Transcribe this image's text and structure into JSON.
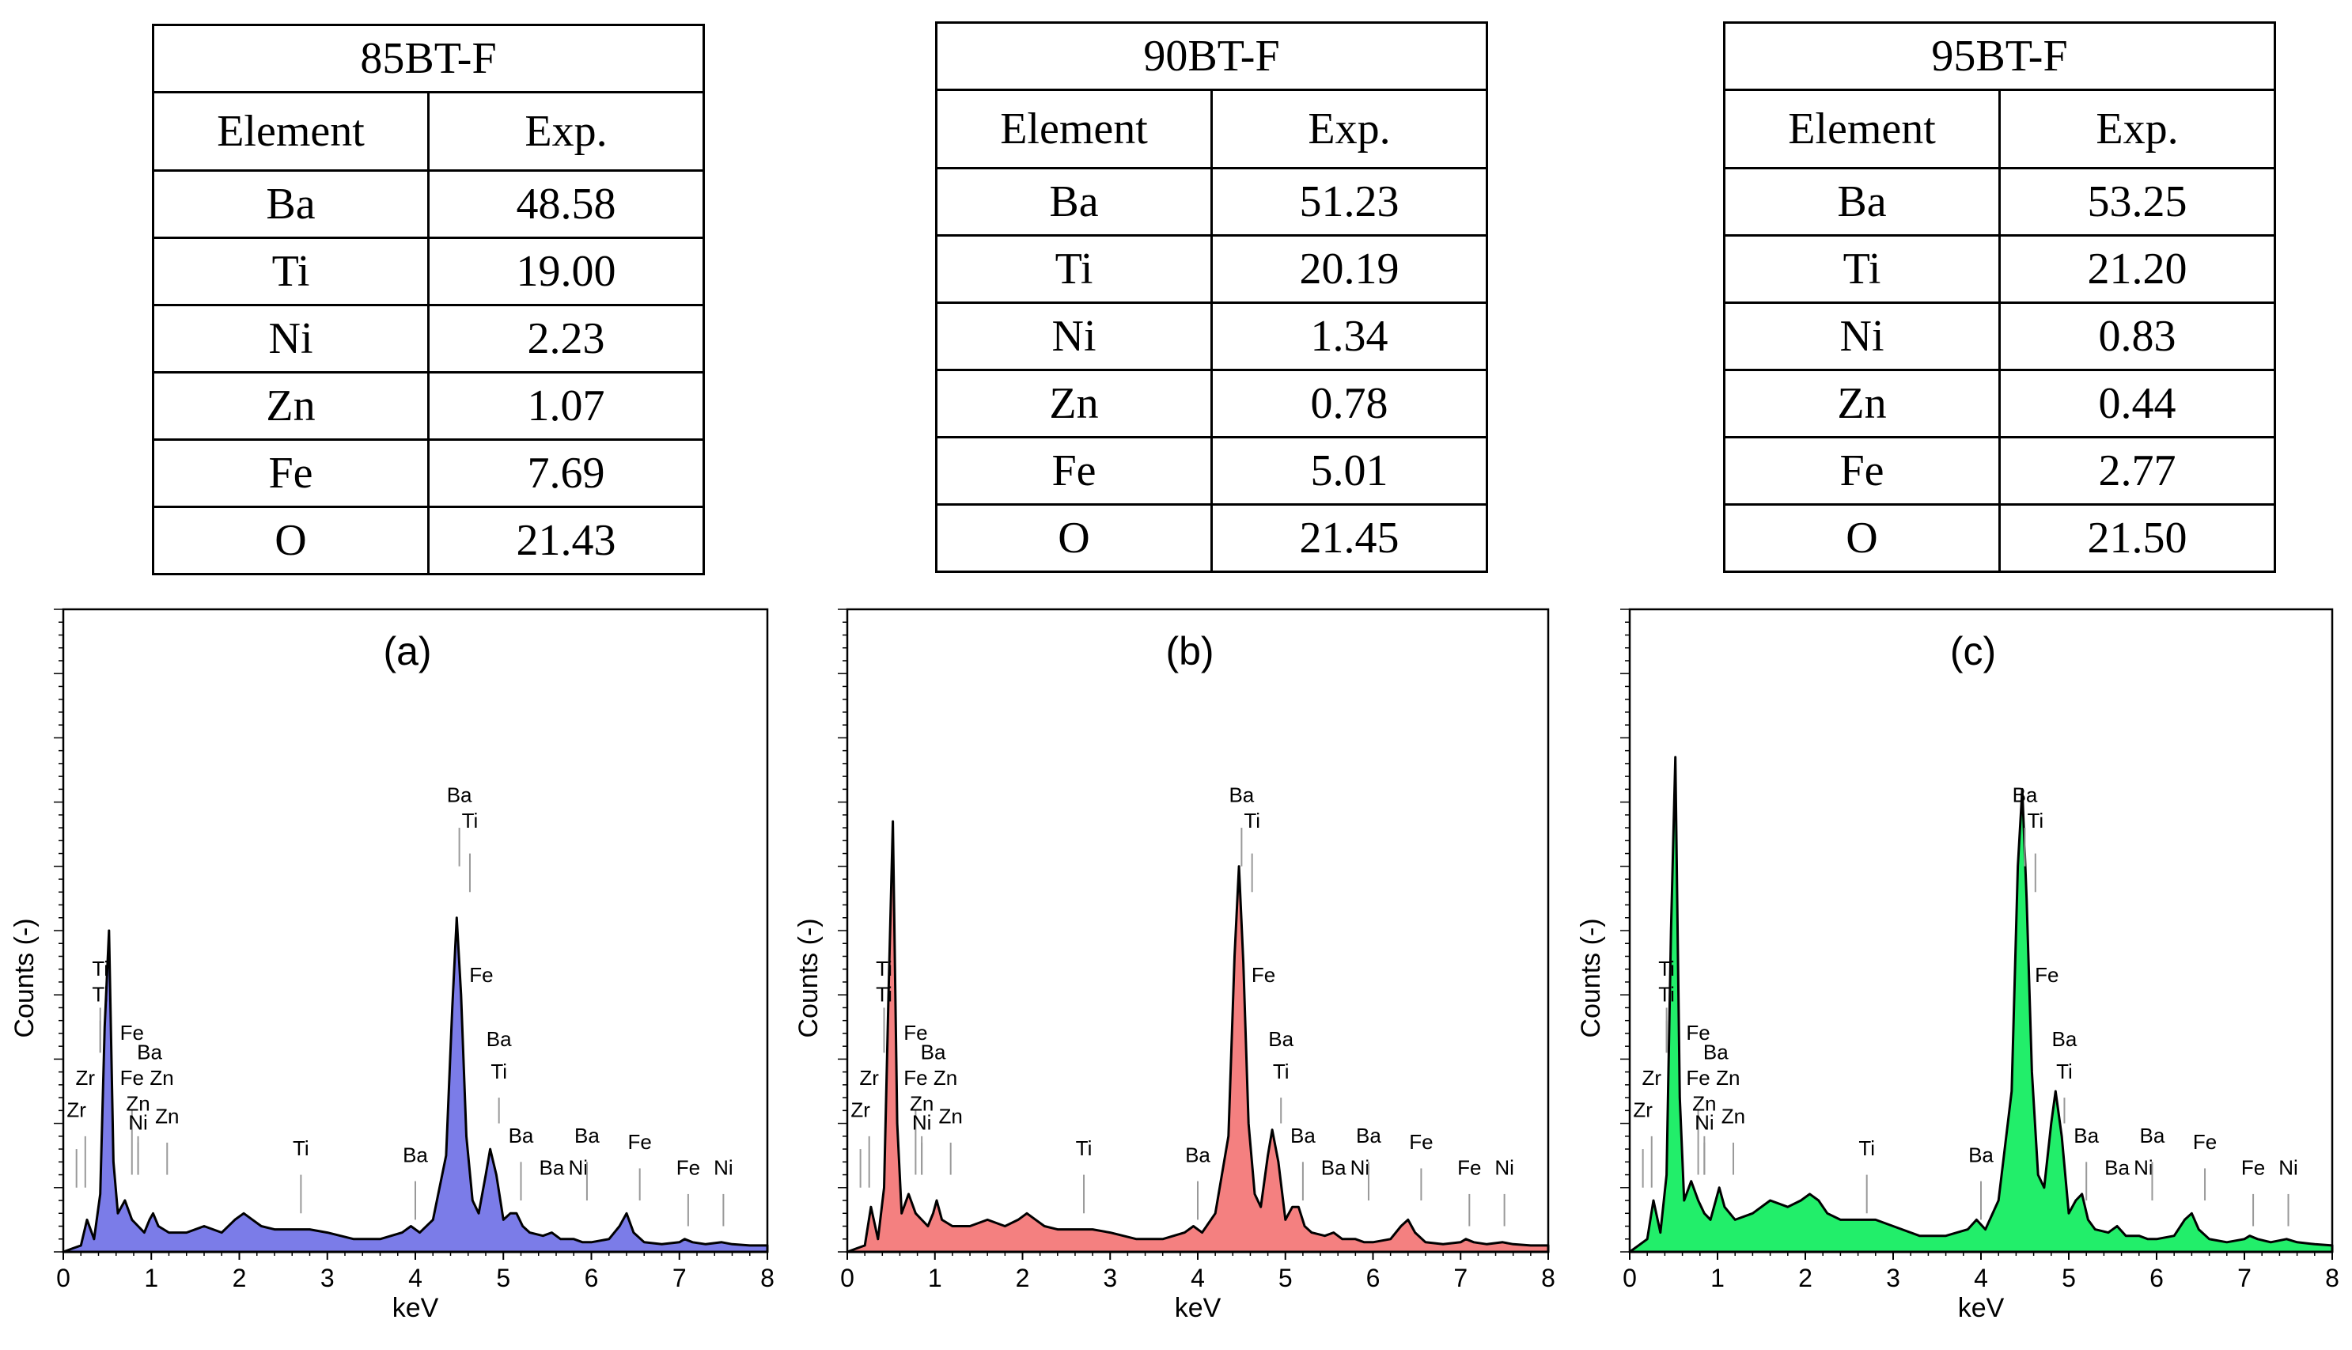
{
  "tables": [
    {
      "title": "85BT-F",
      "header": [
        "Element",
        "Exp."
      ],
      "rows": [
        [
          "Ba",
          "48.58"
        ],
        [
          "Ti",
          "19.00"
        ],
        [
          "Ni",
          "2.23"
        ],
        [
          "Zn",
          "1.07"
        ],
        [
          "Fe",
          "7.69"
        ],
        [
          "O",
          "21.43"
        ]
      ]
    },
    {
      "title": "90BT-F",
      "header": [
        "Element",
        "Exp."
      ],
      "rows": [
        [
          "Ba",
          "51.23"
        ],
        [
          "Ti",
          "20.19"
        ],
        [
          "Ni",
          "1.34"
        ],
        [
          "Zn",
          "0.78"
        ],
        [
          "Fe",
          "5.01"
        ],
        [
          "O",
          "21.45"
        ]
      ]
    },
    {
      "title": "95BT-F",
      "header": [
        "Element",
        "Exp."
      ],
      "rows": [
        [
          "Ba",
          "53.25"
        ],
        [
          "Ti",
          "21.20"
        ],
        [
          "Ni",
          "0.83"
        ],
        [
          "Zn",
          "0.44"
        ],
        [
          "Fe",
          "2.77"
        ],
        [
          "O",
          "21.50"
        ]
      ]
    }
  ],
  "chart_data": [
    {
      "type": "area",
      "title": "(a)",
      "xlabel": "keV",
      "ylabel": "Counts (-)",
      "xlim": [
        0,
        8
      ],
      "ylim": [
        0,
        100
      ],
      "xticks": [
        0,
        1,
        2,
        3,
        4,
        5,
        6,
        7,
        8
      ],
      "fill": "#7b7ce8",
      "x": [
        0.0,
        0.1,
        0.2,
        0.27,
        0.35,
        0.42,
        0.47,
        0.52,
        0.57,
        0.62,
        0.7,
        0.78,
        0.85,
        0.92,
        0.98,
        1.02,
        1.08,
        1.2,
        1.4,
        1.6,
        1.8,
        1.95,
        2.05,
        2.15,
        2.25,
        2.4,
        2.6,
        2.8,
        3.0,
        3.3,
        3.6,
        3.85,
        3.95,
        4.05,
        4.2,
        4.35,
        4.42,
        4.47,
        4.52,
        4.58,
        4.65,
        4.72,
        4.8,
        4.85,
        4.92,
        5.0,
        5.08,
        5.15,
        5.22,
        5.3,
        5.45,
        5.55,
        5.65,
        5.8,
        5.9,
        6.0,
        6.2,
        6.32,
        6.4,
        6.48,
        6.6,
        6.8,
        7.0,
        7.06,
        7.15,
        7.3,
        7.48,
        7.6,
        7.8,
        8.0
      ],
      "y": [
        0,
        0.5,
        1,
        5,
        2,
        9,
        35,
        50,
        14,
        6,
        8,
        5,
        4,
        3,
        5,
        6,
        4,
        3,
        3,
        4,
        3,
        5,
        6,
        5,
        4,
        3.5,
        3.5,
        3.5,
        3,
        2,
        2,
        3,
        4,
        3,
        5,
        15,
        38,
        52,
        40,
        18,
        8,
        6,
        12,
        16,
        12,
        5,
        6,
        6,
        4,
        3,
        2.5,
        3,
        2,
        2,
        1.5,
        1.5,
        2,
        4,
        6,
        3,
        1.5,
        1.2,
        1.5,
        2,
        1.5,
        1.2,
        1.5,
        1.2,
        1,
        1
      ],
      "annotations": [
        "Zr",
        "Zr",
        "Ti",
        "Ti",
        "Fe",
        "Ba",
        "Fe",
        "Zn",
        "Zn",
        "Ni",
        "Zn",
        "Ti",
        "Ba",
        "Ba",
        "Ti",
        "Fe",
        "Ba",
        "Ti",
        "Ba",
        "Ba",
        "Ni",
        "Ba",
        "Fe",
        "Fe",
        "Ni"
      ]
    },
    {
      "type": "area",
      "title": "(b)",
      "xlabel": "keV",
      "ylabel": "Counts (-)",
      "xlim": [
        0,
        8
      ],
      "ylim": [
        0,
        100
      ],
      "xticks": [
        0,
        1,
        2,
        3,
        4,
        5,
        6,
        7,
        8
      ],
      "fill": "#f48080",
      "x": [
        0.0,
        0.1,
        0.2,
        0.27,
        0.35,
        0.42,
        0.47,
        0.52,
        0.57,
        0.62,
        0.7,
        0.78,
        0.85,
        0.92,
        0.98,
        1.02,
        1.08,
        1.2,
        1.4,
        1.6,
        1.8,
        1.95,
        2.05,
        2.15,
        2.25,
        2.4,
        2.6,
        2.8,
        3.0,
        3.3,
        3.6,
        3.85,
        3.95,
        4.05,
        4.2,
        4.35,
        4.42,
        4.47,
        4.52,
        4.58,
        4.65,
        4.72,
        4.8,
        4.85,
        4.92,
        5.0,
        5.08,
        5.15,
        5.22,
        5.3,
        5.45,
        5.55,
        5.65,
        5.8,
        5.9,
        6.0,
        6.2,
        6.32,
        6.4,
        6.48,
        6.6,
        6.8,
        7.0,
        7.06,
        7.15,
        7.3,
        7.48,
        7.6,
        7.8,
        8.0
      ],
      "y": [
        0,
        0.5,
        1,
        7,
        2,
        10,
        40,
        67,
        20,
        6,
        9,
        6,
        5,
        4,
        6,
        8,
        5,
        4,
        4,
        5,
        4,
        5,
        6,
        5,
        4,
        3.5,
        3.5,
        3.5,
        3,
        2,
        2,
        3,
        4,
        3,
        6,
        18,
        46,
        60,
        45,
        20,
        9,
        7,
        15,
        19,
        14,
        5,
        7,
        7,
        4,
        3,
        2.5,
        3,
        2,
        2,
        1.5,
        1.5,
        2,
        4,
        5,
        3,
        1.5,
        1.2,
        1.5,
        2,
        1.5,
        1.2,
        1.5,
        1.2,
        1,
        1
      ],
      "annotations": [
        "Zr",
        "Zr",
        "Ti",
        "Ti",
        "Fe",
        "Ba",
        "Fe",
        "Zn",
        "Zn",
        "Ni",
        "Zn",
        "Ti",
        "Ba",
        "Ba",
        "Ti",
        "Fe",
        "Ba",
        "Ti",
        "Ba",
        "Ba",
        "Ni",
        "Ba",
        "Fe",
        "Fe",
        "Ni"
      ]
    },
    {
      "type": "area",
      "title": "(c)",
      "xlabel": "keV",
      "ylabel": "Counts (-)",
      "xlim": [
        0,
        8
      ],
      "ylim": [
        0,
        100
      ],
      "xticks": [
        0,
        1,
        2,
        3,
        4,
        5,
        6,
        7,
        8
      ],
      "fill": "#22ee6a",
      "x": [
        0.0,
        0.1,
        0.2,
        0.27,
        0.35,
        0.42,
        0.47,
        0.52,
        0.57,
        0.62,
        0.7,
        0.78,
        0.85,
        0.92,
        0.98,
        1.02,
        1.08,
        1.2,
        1.4,
        1.6,
        1.8,
        1.95,
        2.05,
        2.15,
        2.25,
        2.4,
        2.6,
        2.8,
        3.0,
        3.3,
        3.6,
        3.85,
        3.95,
        4.05,
        4.2,
        4.35,
        4.42,
        4.47,
        4.52,
        4.58,
        4.65,
        4.72,
        4.8,
        4.85,
        4.92,
        5.0,
        5.08,
        5.15,
        5.22,
        5.3,
        5.45,
        5.55,
        5.65,
        5.8,
        5.9,
        6.0,
        6.2,
        6.32,
        6.4,
        6.48,
        6.6,
        6.8,
        7.0,
        7.06,
        7.15,
        7.3,
        7.48,
        7.6,
        7.8,
        8.0
      ],
      "y": [
        0,
        1,
        2,
        8,
        3,
        12,
        50,
        77,
        24,
        8,
        11,
        8,
        6,
        5,
        8,
        10,
        7,
        5,
        6,
        8,
        7,
        8,
        9,
        8,
        6,
        5,
        5,
        5,
        4,
        2.5,
        2.5,
        3.5,
        5,
        3.5,
        8,
        25,
        60,
        72,
        55,
        28,
        12,
        10,
        20,
        25,
        18,
        6,
        8,
        9,
        5,
        3.5,
        3,
        4,
        2.5,
        2.5,
        2,
        2,
        2.5,
        5,
        6,
        3.5,
        2,
        1.5,
        2,
        2.5,
        2,
        1.5,
        2,
        1.5,
        1.2,
        1
      ],
      "annotations": [
        "Zr",
        "Zr",
        "Ti",
        "Ti",
        "Fe",
        "Ba",
        "Fe",
        "Zn",
        "Zn",
        "Ni",
        "Zn",
        "Ti",
        "Ba",
        "Ba",
        "Ti",
        "Fe",
        "Ba",
        "Ti",
        "Ba",
        "Ba",
        "Ni",
        "Ba",
        "Fe",
        "Fe",
        "Ni"
      ]
    }
  ]
}
